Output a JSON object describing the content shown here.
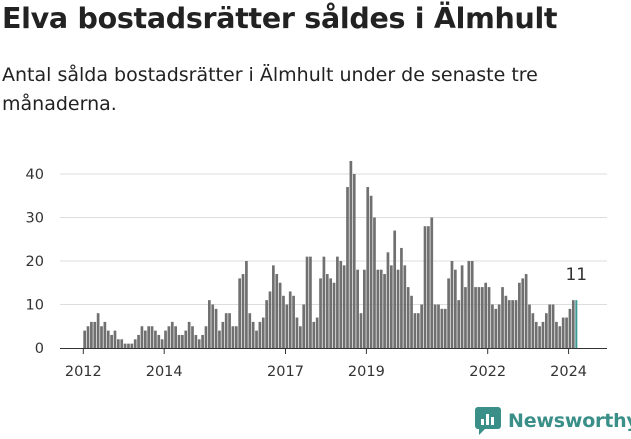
{
  "title": "Elva bostadsrätter såldes i Älmhult",
  "subtitle": "Antal sålda bostadsrätter i Älmhult under de senaste tre månaderna.",
  "brand": "Newsworthy",
  "colors": {
    "bar": "#707070",
    "highlight": "#3a9a92",
    "grid": "#dddddd",
    "brand": "#3a8f88"
  },
  "chart_data": {
    "type": "bar",
    "title": "Elva bostadsrätter såldes i Älmhult",
    "subtitle": "Antal sålda bostadsrätter i Älmhult under de senaste tre månaderna.",
    "xlabel": "",
    "ylabel": "",
    "ylim": [
      0,
      45
    ],
    "yticks": [
      0,
      10,
      20,
      30,
      40
    ],
    "xticks": [
      "2012",
      "2014",
      "2017",
      "2019",
      "2022",
      "2024"
    ],
    "grid": true,
    "start": "2012-01",
    "end": "2024-02",
    "values": [
      4,
      5,
      6,
      6,
      8,
      5,
      6,
      4,
      3,
      4,
      2,
      2,
      1,
      1,
      1,
      2,
      3,
      5,
      4,
      5,
      5,
      4,
      3,
      2,
      4,
      5,
      6,
      5,
      3,
      3,
      4,
      6,
      5,
      3,
      2,
      3,
      5,
      11,
      10,
      9,
      4,
      6,
      8,
      8,
      5,
      5,
      16,
      17,
      20,
      8,
      6,
      4,
      6,
      7,
      11,
      13,
      19,
      17,
      15,
      12,
      10,
      13,
      12,
      7,
      5,
      10,
      21,
      21,
      6,
      7,
      16,
      21,
      17,
      16,
      15,
      21,
      20,
      19,
      37,
      43,
      40,
      18,
      8,
      18,
      37,
      35,
      30,
      18,
      18,
      17,
      22,
      19,
      27,
      18,
      23,
      19,
      14,
      12,
      8,
      8,
      10,
      28,
      28,
      30,
      10,
      10,
      9,
      9,
      16,
      20,
      18,
      11,
      19,
      14,
      20,
      20,
      14,
      14,
      14,
      15,
      14,
      10,
      9,
      10,
      14,
      12,
      11,
      11,
      11,
      15,
      16,
      17,
      10,
      8,
      6,
      5,
      6,
      8,
      10,
      10,
      6,
      5,
      7,
      7,
      9,
      11,
      11
    ],
    "highlight_label": "11"
  }
}
